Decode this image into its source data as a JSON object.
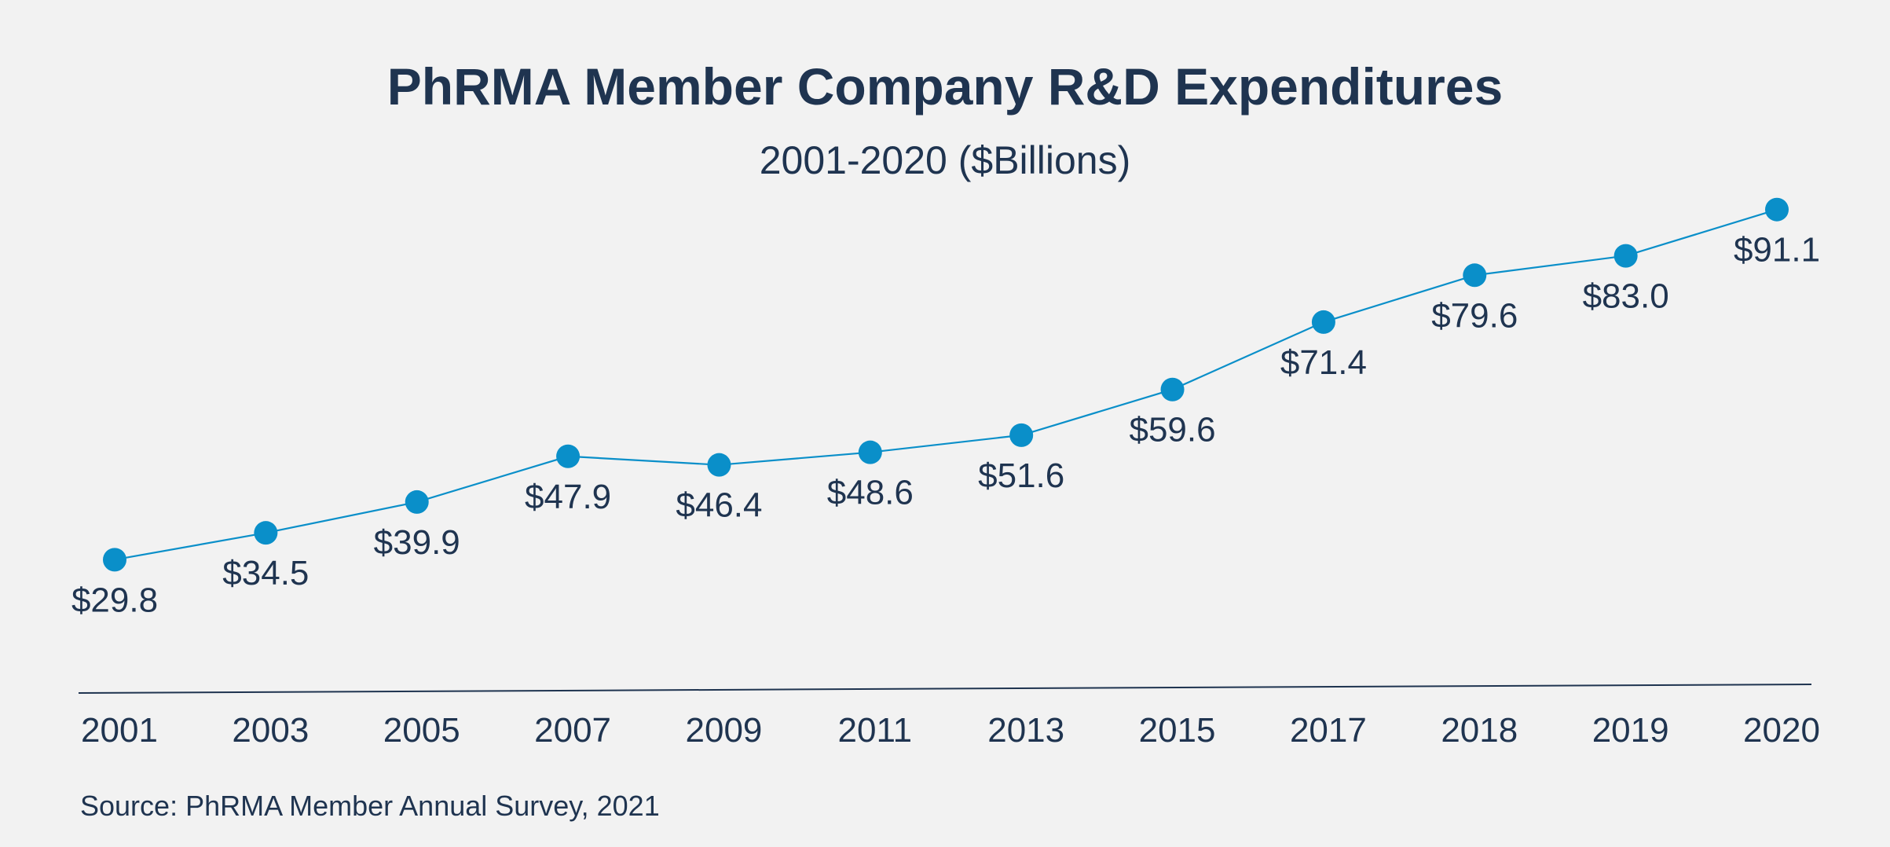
{
  "chart_data": {
    "type": "line",
    "title": "PhRMA Member Company R&D Expenditures",
    "subtitle": "2001-2020 ($Billions)",
    "categories": [
      "2001",
      "2003",
      "2005",
      "2007",
      "2009",
      "2011",
      "2013",
      "2015",
      "2017",
      "2018",
      "2019",
      "2020"
    ],
    "values": [
      29.8,
      34.5,
      39.9,
      47.9,
      46.4,
      48.6,
      51.6,
      59.6,
      71.4,
      79.6,
      83.0,
      91.1
    ],
    "data_labels": [
      "$29.8",
      "$34.5",
      "$39.9",
      "$47.9",
      "$46.4",
      "$48.6",
      "$51.6",
      "$59.6",
      "$71.4",
      "$79.6",
      "$83.0",
      "$91.1"
    ],
    "xlabel": "",
    "ylabel": "",
    "ylim": [
      0,
      100
    ],
    "grid": false,
    "legend": "none",
    "colors": {
      "line": "#0a8fc9",
      "marker": "#0a8fc9",
      "text": "#1f3450",
      "axis": "#1f3450",
      "background": "#f2f2f2"
    }
  },
  "source": "Source: PhRMA Member Annual Survey, 2021"
}
